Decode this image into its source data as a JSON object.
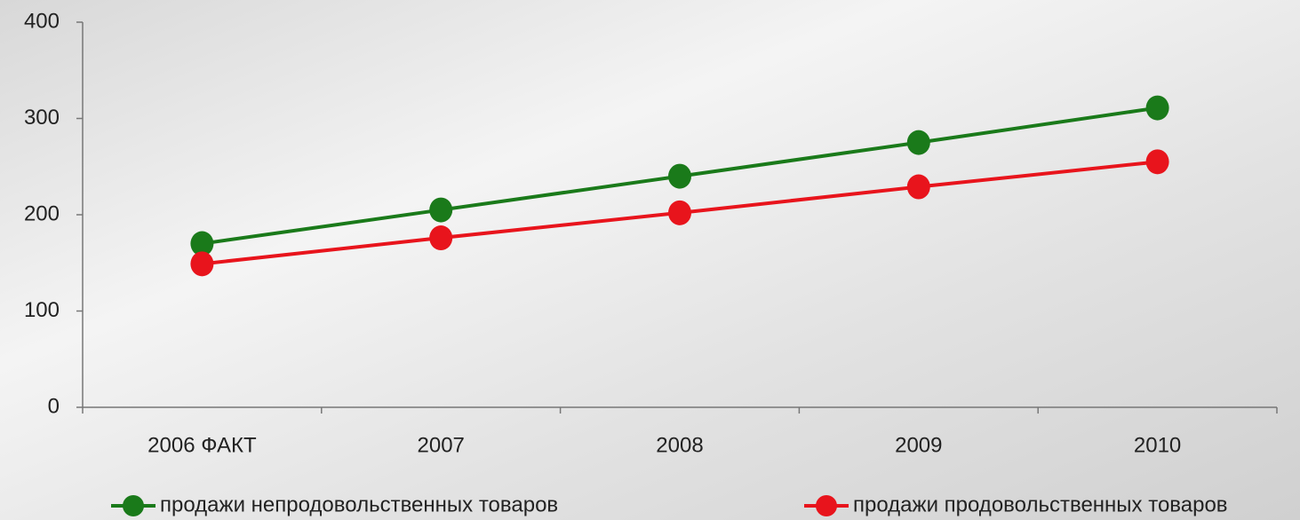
{
  "chart_data": {
    "type": "line",
    "categories": [
      "2006 ФАКТ",
      "2007",
      "2008",
      "2009",
      "2010"
    ],
    "series": [
      {
        "name": "продажи непродовольственных товаров",
        "color": "#1a7a1a",
        "values": [
          170,
          205,
          240,
          275,
          311
        ]
      },
      {
        "name": "продажи продовольственных товаров",
        "color": "#e8141c",
        "values": [
          149,
          176,
          202,
          229,
          255
        ]
      }
    ],
    "ylim": [
      0,
      400
    ],
    "yticks": [
      0,
      100,
      200,
      300,
      400
    ],
    "grid": false,
    "legend": "bottom"
  }
}
